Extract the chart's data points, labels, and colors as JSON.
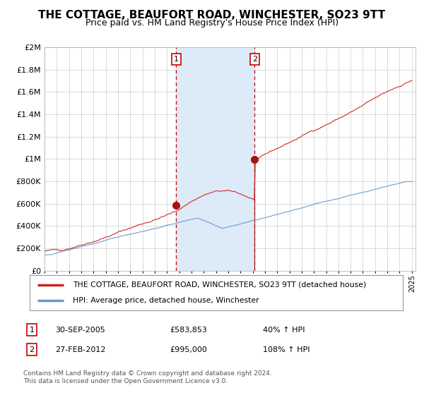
{
  "title": "THE COTTAGE, BEAUFORT ROAD, WINCHESTER, SO23 9TT",
  "subtitle": "Price paid vs. HM Land Registry's House Price Index (HPI)",
  "ylim": [
    0,
    2000000
  ],
  "yticks": [
    0,
    200000,
    400000,
    600000,
    800000,
    1000000,
    1200000,
    1400000,
    1600000,
    1800000,
    2000000
  ],
  "ytick_labels": [
    "£0",
    "£200K",
    "£400K",
    "£600K",
    "£800K",
    "£1M",
    "£1.2M",
    "£1.4M",
    "£1.6M",
    "£1.8M",
    "£2M"
  ],
  "sale1_date": 2005.75,
  "sale1_price": 583853,
  "sale1_label": "1",
  "sale2_date": 2012.16,
  "sale2_price": 995000,
  "sale2_label": "2",
  "shade_color": "#ddeaf7",
  "dashed_line_color": "#cc0000",
  "red_line_color": "#cc2222",
  "blue_line_color": "#6699cc",
  "marker_color": "#aa1111",
  "legend1_text": "THE COTTAGE, BEAUFORT ROAD, WINCHESTER, SO23 9TT (detached house)",
  "legend2_text": "HPI: Average price, detached house, Winchester",
  "table_row1": [
    "1",
    "30-SEP-2005",
    "£583,853",
    "40% ↑ HPI"
  ],
  "table_row2": [
    "2",
    "27-FEB-2012",
    "£995,000",
    "108% ↑ HPI"
  ],
  "footer": "Contains HM Land Registry data © Crown copyright and database right 2024.\nThis data is licensed under the Open Government Licence v3.0.",
  "background_color": "#ffffff",
  "grid_color": "#cccccc"
}
